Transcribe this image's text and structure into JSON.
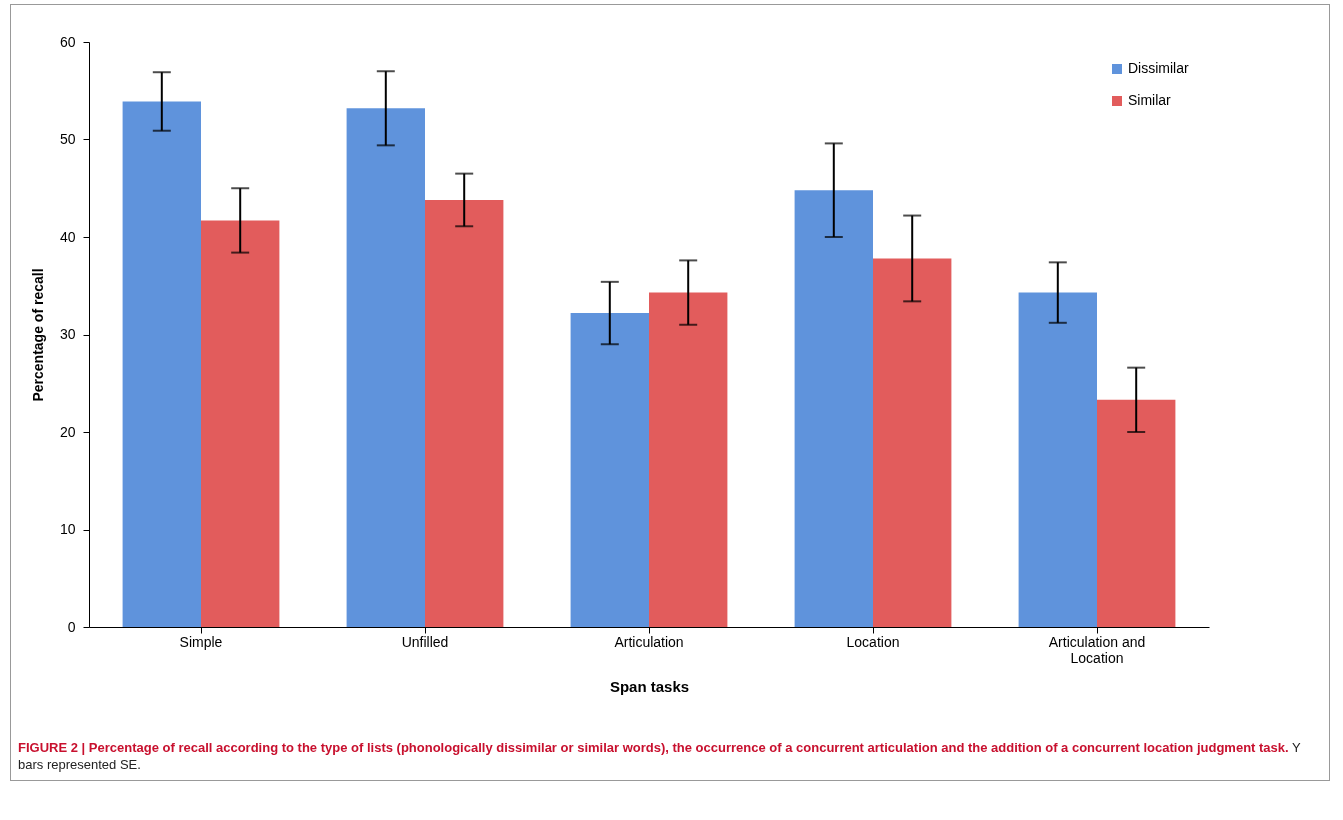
{
  "chart_data": {
    "type": "bar",
    "xlabel": "Span tasks",
    "ylabel": "Percentage of recall",
    "categories": [
      "Simple",
      "Unfilled",
      "Articulation",
      "Location",
      "Articulation and Location"
    ],
    "series": [
      {
        "name": "Dissimilar",
        "color": "#5f93dc",
        "values": [
          53.9,
          53.2,
          32.2,
          44.8,
          34.3
        ],
        "errors": [
          3,
          3.8,
          3.2,
          4.8,
          3.1
        ]
      },
      {
        "name": "Similar",
        "color": "#e25c5c",
        "values": [
          41.7,
          43.8,
          34.3,
          37.8,
          23.3
        ],
        "errors": [
          3.3,
          2.7,
          3.3,
          4.4,
          3.3
        ]
      }
    ],
    "ylim": [
      0,
      60
    ],
    "yticks": [
      0,
      10,
      20,
      30,
      40,
      50,
      60
    ],
    "grid": false,
    "legend": "top right",
    "annotations": [
      "FIGURE 2 | Percentage of recall according to the type of lists (phonologically dissimilar or similar words), the occurrence of a concurrent articulation and the addition of a concurrent location judgment task. Y bars represented SE."
    ]
  }
}
